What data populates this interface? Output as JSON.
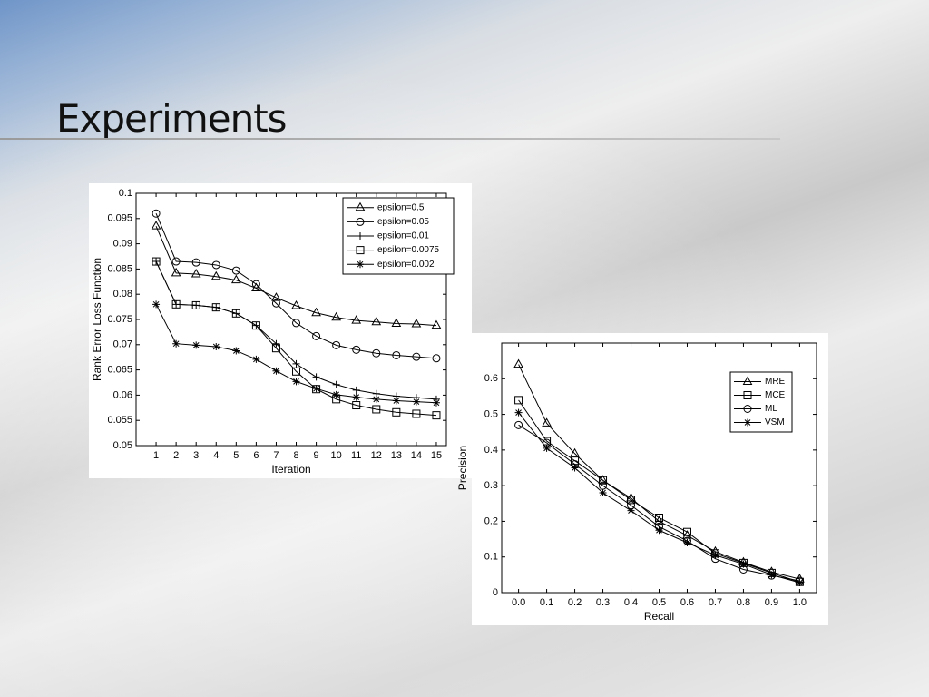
{
  "slide_title": "Experiments",
  "chart_data": [
    {
      "type": "line",
      "x": [
        1,
        2,
        3,
        4,
        5,
        6,
        7,
        8,
        9,
        10,
        11,
        12,
        13,
        14,
        15
      ],
      "xlabel": "Iteration",
      "ylabel": "Rank Error Loss Function",
      "xlim": [
        0,
        15.5
      ],
      "xticks": [
        1,
        2,
        3,
        4,
        5,
        6,
        7,
        8,
        9,
        10,
        11,
        12,
        13,
        14,
        15
      ],
      "ylim": [
        0.05,
        0.1
      ],
      "yticks": [
        0.05,
        0.055,
        0.06,
        0.065,
        0.07,
        0.075,
        0.08,
        0.085,
        0.09,
        0.095,
        0.1
      ],
      "legend": "upper right",
      "series": [
        {
          "name": "epsilon=0.5",
          "color": "#000000",
          "marker": "triangle",
          "values": [
            0.0935,
            0.0842,
            0.084,
            0.0835,
            0.0828,
            0.0812,
            0.0793,
            0.0777,
            0.0763,
            0.0754,
            0.0748,
            0.0745,
            0.0742,
            0.0741,
            0.0738
          ]
        },
        {
          "name": "epsilon=0.05",
          "color": "#000000",
          "marker": "circle",
          "values": [
            0.096,
            0.0865,
            0.0863,
            0.0858,
            0.0847,
            0.082,
            0.0782,
            0.0743,
            0.0717,
            0.0699,
            0.069,
            0.0683,
            0.0679,
            0.0676,
            0.0673
          ]
        },
        {
          "name": "epsilon=0.01",
          "color": "#000000",
          "marker": "plus",
          "values": [
            0.0865,
            0.078,
            0.0778,
            0.0774,
            0.0762,
            0.0738,
            0.0702,
            0.0662,
            0.0636,
            0.0621,
            0.061,
            0.0603,
            0.0598,
            0.0595,
            0.0592
          ]
        },
        {
          "name": "epsilon=0.0075",
          "color": "#000000",
          "marker": "square",
          "values": [
            0.0865,
            0.078,
            0.0778,
            0.0774,
            0.0762,
            0.0738,
            0.0693,
            0.0647,
            0.0612,
            0.0592,
            0.058,
            0.0572,
            0.0566,
            0.0563,
            0.056
          ]
        },
        {
          "name": "epsilon=0.002",
          "color": "#000000",
          "marker": "star",
          "values": [
            0.078,
            0.0702,
            0.0699,
            0.0696,
            0.0688,
            0.0671,
            0.0648,
            0.0627,
            0.0613,
            0.0601,
            0.0596,
            0.0592,
            0.0589,
            0.0587,
            0.0585
          ]
        }
      ]
    },
    {
      "type": "line",
      "x": [
        0,
        0.1,
        0.2,
        0.3,
        0.4,
        0.5,
        0.6,
        0.7,
        0.8,
        0.9,
        1
      ],
      "xlabel": "Recall",
      "ylabel": "Precision",
      "xlim": [
        -0.06,
        1.06
      ],
      "xticks": [
        {
          "value": 0,
          "label": "0.0"
        },
        0.1,
        0.2,
        0.3,
        0.4,
        0.5,
        0.6,
        0.7,
        0.8,
        0.9,
        {
          "value": 1,
          "label": "1.0"
        }
      ],
      "ylim": [
        0,
        0.7
      ],
      "yticks": [
        0,
        0.1,
        0.2,
        0.3,
        0.4,
        0.5,
        0.6
      ],
      "legend": "upper right",
      "series": [
        {
          "name": "MRE",
          "color": "#000000",
          "marker": "triangle",
          "values": [
            0.64,
            0.475,
            0.39,
            0.315,
            0.265,
            0.2,
            0.16,
            0.115,
            0.085,
            0.058,
            0.038
          ]
        },
        {
          "name": "MCE",
          "color": "#000000",
          "marker": "square",
          "values": [
            0.54,
            0.425,
            0.37,
            0.315,
            0.26,
            0.21,
            0.17,
            0.11,
            0.083,
            0.055,
            0.03
          ]
        },
        {
          "name": "ML",
          "color": "#000000",
          "marker": "circle",
          "values": [
            0.47,
            0.42,
            0.36,
            0.3,
            0.245,
            0.185,
            0.145,
            0.095,
            0.065,
            0.048,
            0.033
          ]
        },
        {
          "name": "VSM",
          "color": "#000000",
          "marker": "star",
          "values": [
            0.505,
            0.405,
            0.35,
            0.28,
            0.23,
            0.175,
            0.14,
            0.105,
            0.08,
            0.05,
            0.028
          ]
        }
      ]
    }
  ]
}
